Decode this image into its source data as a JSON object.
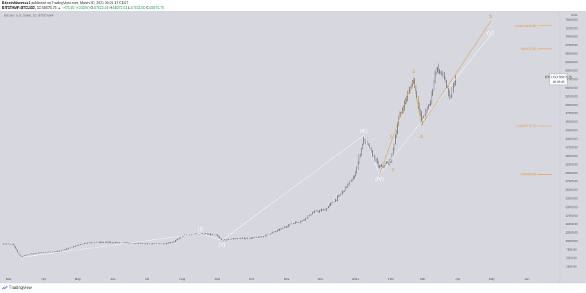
{
  "header": {
    "user": "BitcoinMaximus1",
    "published_text": "published on TradingView.com, March 30, 2021 09:21:17 CEST",
    "symbol": "BITSTAMP:BTCUSD",
    "period": "1D",
    "price": "58075.75",
    "change_arrow": "▲",
    "change": "+475.65 (+0.83%)",
    "o_label": "O:",
    "o_val": "57623.69",
    "h_label": "H:",
    "h_val": "58272.61",
    "l_label": "L:",
    "l_val": "57011.00",
    "c_label": "C:",
    "c_val": "58075.75"
  },
  "footer": {
    "brand": "TradingView",
    "logo_icon": "tradingview-logo-icon"
  },
  "colors": {
    "plot_bg": "#d6d7df",
    "candle": "#1a1a1a",
    "wave_main": "#ffffff",
    "wave_sub": "#e8931a",
    "fib": "#e8931a",
    "price_box_bg": "#ffffff"
  },
  "chart_data": {
    "type": "candlestick",
    "title": "Bitcoin / U.S. Dollar, 1D, BITSTAMP",
    "currency": "USD",
    "x_ticks": [
      "Mar",
      "Apr",
      "May",
      "Jun",
      "Jul",
      "Aug",
      "Sep",
      "Oct",
      "Nov",
      "Dec",
      "2021",
      "Feb",
      "Mar",
      "Apr",
      "May",
      "Jun"
    ],
    "y_ticks": [
      2500,
      5000,
      7500,
      10000,
      12500,
      15000,
      17500,
      20000,
      22500,
      25000,
      27500,
      30000,
      32500,
      35000,
      37500,
      40000,
      42500,
      45000,
      47500,
      50000,
      52500,
      55000,
      57500,
      60000,
      62500,
      65000,
      67500,
      70000,
      72500,
      75000
    ],
    "y_tick_labels": [
      "2500.00",
      "5000.00",
      "7500.00",
      "10000.00",
      "12500.00",
      "15000.00",
      "17500.00",
      "20000.00",
      "22500.00",
      "25000.00",
      "27500.00",
      "30000.00",
      "32500.00",
      "35000.00",
      "37500.00",
      "40000.00",
      "42500.00",
      "45000.00",
      "47500.00",
      "50000.00",
      "52500.00",
      "55000.00",
      "57500.00",
      "60000.00",
      "62500.00",
      "65000.00",
      "67500.00",
      "70000.00",
      "72500.00",
      "75000.00"
    ],
    "ylim": [
      0,
      77500
    ],
    "price_label": {
      "symbol": "BTCUSD",
      "price": "58075.75",
      "countdown": "16:38:46",
      "value": 58075.75
    },
    "price_path": [
      [
        "2020-02-25",
        9200
      ],
      [
        "2020-03-05",
        8900
      ],
      [
        "2020-03-12",
        5200
      ],
      [
        "2020-03-13",
        5600
      ],
      [
        "2020-03-20",
        6200
      ],
      [
        "2020-04-01",
        6700
      ],
      [
        "2020-04-15",
        7000
      ],
      [
        "2020-04-30",
        8700
      ],
      [
        "2020-05-10",
        9600
      ],
      [
        "2020-05-31",
        9600
      ],
      [
        "2020-06-15",
        9400
      ],
      [
        "2020-06-30",
        9200
      ],
      [
        "2020-07-15",
        9200
      ],
      [
        "2020-07-25",
        9800
      ],
      [
        "2020-08-01",
        11500
      ],
      [
        "2020-08-17",
        12200
      ],
      [
        "2020-08-31",
        11700
      ],
      [
        "2020-09-05",
        10200
      ],
      [
        "2020-09-15",
        10700
      ],
      [
        "2020-09-30",
        10800
      ],
      [
        "2020-10-10",
        11200
      ],
      [
        "2020-10-25",
        13200
      ],
      [
        "2020-11-05",
        15000
      ],
      [
        "2020-11-15",
        16000
      ],
      [
        "2020-11-25",
        18500
      ],
      [
        "2020-12-05",
        19200
      ],
      [
        "2020-12-17",
        23000
      ],
      [
        "2020-12-31",
        29000
      ],
      [
        "2021-01-08",
        40000
      ],
      [
        "2021-01-15",
        36000
      ],
      [
        "2021-01-22",
        31500
      ],
      [
        "2021-02-01",
        33500
      ],
      [
        "2021-02-08",
        46000
      ],
      [
        "2021-02-21",
        57500
      ],
      [
        "2021-02-28",
        45000
      ],
      [
        "2021-03-08",
        51000
      ],
      [
        "2021-03-13",
        61000
      ],
      [
        "2021-03-20",
        58000
      ],
      [
        "2021-03-25",
        51500
      ],
      [
        "2021-03-30",
        58075
      ]
    ],
    "wave_labels": [
      {
        "label": "(I)",
        "x": "2020-08-17",
        "y": 12200,
        "style": "main",
        "pos": "above"
      },
      {
        "label": "(II)",
        "x": "2020-09-05",
        "y": 10200,
        "style": "main",
        "pos": "below"
      },
      {
        "label": "(III)",
        "x": "2021-01-08",
        "y": 41000,
        "style": "main",
        "pos": "above"
      },
      {
        "label": "(IV)",
        "x": "2021-01-22",
        "y": 29500,
        "style": "main",
        "pos": "below"
      },
      {
        "label": "(V)",
        "x": "2021-04-30",
        "y": 71000,
        "style": "main",
        "pos": "center"
      },
      {
        "label": "1",
        "x": "2021-02-01",
        "y": 39500,
        "style": "sub",
        "pos": "above"
      },
      {
        "label": "2",
        "x": "2021-02-03",
        "y": 31000,
        "style": "sub",
        "pos": "center"
      },
      {
        "label": "3",
        "x": "2021-02-21",
        "y": 58500,
        "style": "sub",
        "pos": "above"
      },
      {
        "label": "4",
        "x": "2021-02-28",
        "y": 42000,
        "style": "sub",
        "pos": "below"
      },
      {
        "label": "5",
        "x": "2021-04-30",
        "y": 76000,
        "style": "sub",
        "pos": "center"
      }
    ],
    "wave_lines": [
      {
        "style": "main",
        "points": [
          [
            "2020-03-12",
            5200
          ],
          [
            "2020-08-17",
            12200
          ],
          [
            "2020-09-05",
            10200
          ],
          [
            "2021-01-08",
            41000
          ],
          [
            "2021-01-22",
            29500
          ],
          [
            "2021-04-30",
            70500
          ]
        ]
      },
      {
        "style": "sub",
        "points": [
          [
            "2021-01-22",
            29500
          ],
          [
            "2021-02-21",
            57500
          ],
          [
            "2021-02-28",
            44000
          ],
          [
            "2021-04-30",
            74500
          ]
        ]
      }
    ],
    "fib_levels": [
      {
        "label": "4.618(73178.49)",
        "value": 73178.49
      },
      {
        "label": "1(66417.28)",
        "value": 66417.28
      },
      {
        "label": "1.618(43771.72)",
        "value": 43771.72
      },
      {
        "label": "0(29558.38)",
        "value": 29558.38
      }
    ]
  }
}
